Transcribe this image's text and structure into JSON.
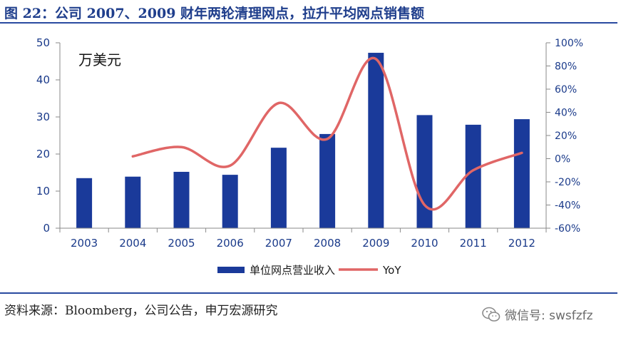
{
  "header": {
    "title": "图 22：公司 2007、2009 财年两轮清理网点，拉升平均网点销售额"
  },
  "footer": {
    "source": "资料来源：Bloomberg，公司公告，申万宏源研究",
    "wechat_label": "微信号: swsfzfz",
    "wechat_icon": "wechat-icon"
  },
  "colors": {
    "bar": "#1a3a9a",
    "line": "#e06666",
    "axis_text": "#1a3a8a",
    "rule": "#2a4aa0"
  },
  "chart_data": {
    "type": "bar",
    "unit_label": "万美元",
    "categories": [
      "2003",
      "2004",
      "2005",
      "2006",
      "2007",
      "2008",
      "2009",
      "2010",
      "2011",
      "2012"
    ],
    "series": [
      {
        "name": "单位网点营业收入",
        "type": "bar",
        "axis": "left",
        "values": [
          13.5,
          13.9,
          15.2,
          14.4,
          21.7,
          25.4,
          47.3,
          30.5,
          27.9,
          29.4
        ]
      },
      {
        "name": "YoY",
        "type": "line",
        "axis": "right",
        "values": [
          null,
          2.0,
          10.0,
          -6.0,
          48.0,
          17.0,
          86.0,
          -40.0,
          -10.0,
          5.0
        ]
      }
    ],
    "y_left": {
      "ylim": [
        0,
        50
      ],
      "ticks": [
        0,
        10,
        20,
        30,
        40,
        50
      ],
      "tick_labels": [
        "0",
        "10",
        "20",
        "30",
        "40",
        "50"
      ]
    },
    "y_right": {
      "ylim": [
        -60,
        100
      ],
      "ticks": [
        -60,
        -40,
        -20,
        0,
        20,
        40,
        60,
        80,
        100
      ],
      "tick_labels": [
        "-60%",
        "-40%",
        "-20%",
        "0%",
        "20%",
        "40%",
        "60%",
        "80%",
        "100%"
      ]
    },
    "legend_position": "bottom-center",
    "grid": false
  }
}
